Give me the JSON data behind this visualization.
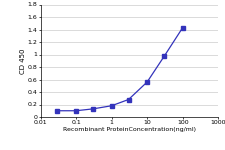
{
  "x": [
    0.03,
    0.1,
    0.3,
    1,
    3,
    10,
    30,
    100
  ],
  "y": [
    0.1,
    0.1,
    0.13,
    0.18,
    0.28,
    0.56,
    0.97,
    1.43
  ],
  "color": "#3333bb",
  "marker": "s",
  "markersize": 2.5,
  "linewidth": 0.9,
  "xlabel": "Recombinant ProteinConcentration(ng/ml)",
  "ylabel": "CD 450",
  "xlim": [
    0.01,
    1000
  ],
  "ylim": [
    0,
    1.8
  ],
  "yticks": [
    0,
    0.2,
    0.4,
    0.6,
    0.8,
    1.0,
    1.2,
    1.4,
    1.6,
    1.8
  ],
  "ytick_labels": [
    "0",
    "0.2",
    "0.4",
    "0.6",
    "0.8",
    "1",
    "1.2",
    "1.4",
    "1.6",
    "1.8"
  ],
  "xtick_labels": [
    "0.01",
    "0.1",
    "1",
    "10",
    "100",
    "1000"
  ],
  "xtick_vals": [
    0.01,
    0.1,
    1,
    10,
    100,
    1000
  ],
  "background_color": "#ffffff",
  "grid_color": "#cccccc",
  "xlabel_fontsize": 4.5,
  "ylabel_fontsize": 5.0,
  "tick_fontsize": 4.5
}
